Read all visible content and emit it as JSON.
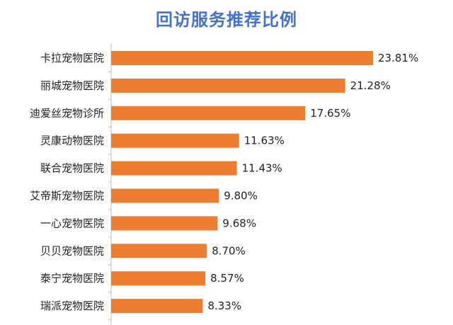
{
  "chart_data": {
    "type": "bar",
    "orientation": "horizontal",
    "title": "回访服务推荐比例",
    "categories": [
      "卡拉宠物医院",
      "丽城宠物医院",
      "迪爱丝宠物诊所",
      "灵康动物医院",
      "联合宠物医院",
      "艾帝斯宠物医院",
      "一心宠物医院",
      "贝贝宠物医院",
      "泰宁宠物医院",
      "瑞派宠物医院"
    ],
    "values": [
      23.81,
      21.28,
      17.65,
      11.63,
      11.43,
      9.8,
      9.68,
      8.7,
      8.57,
      8.33
    ],
    "value_labels": [
      "23.81%",
      "21.28%",
      "17.65%",
      "11.63%",
      "11.43%",
      "9.80%",
      "9.68%",
      "8.70%",
      "8.57%",
      "8.33%"
    ],
    "bar_color": "#ED7D31",
    "title_color": "#4472C4",
    "xlabel": "",
    "ylabel": "",
    "grid": false,
    "legend": "none"
  }
}
